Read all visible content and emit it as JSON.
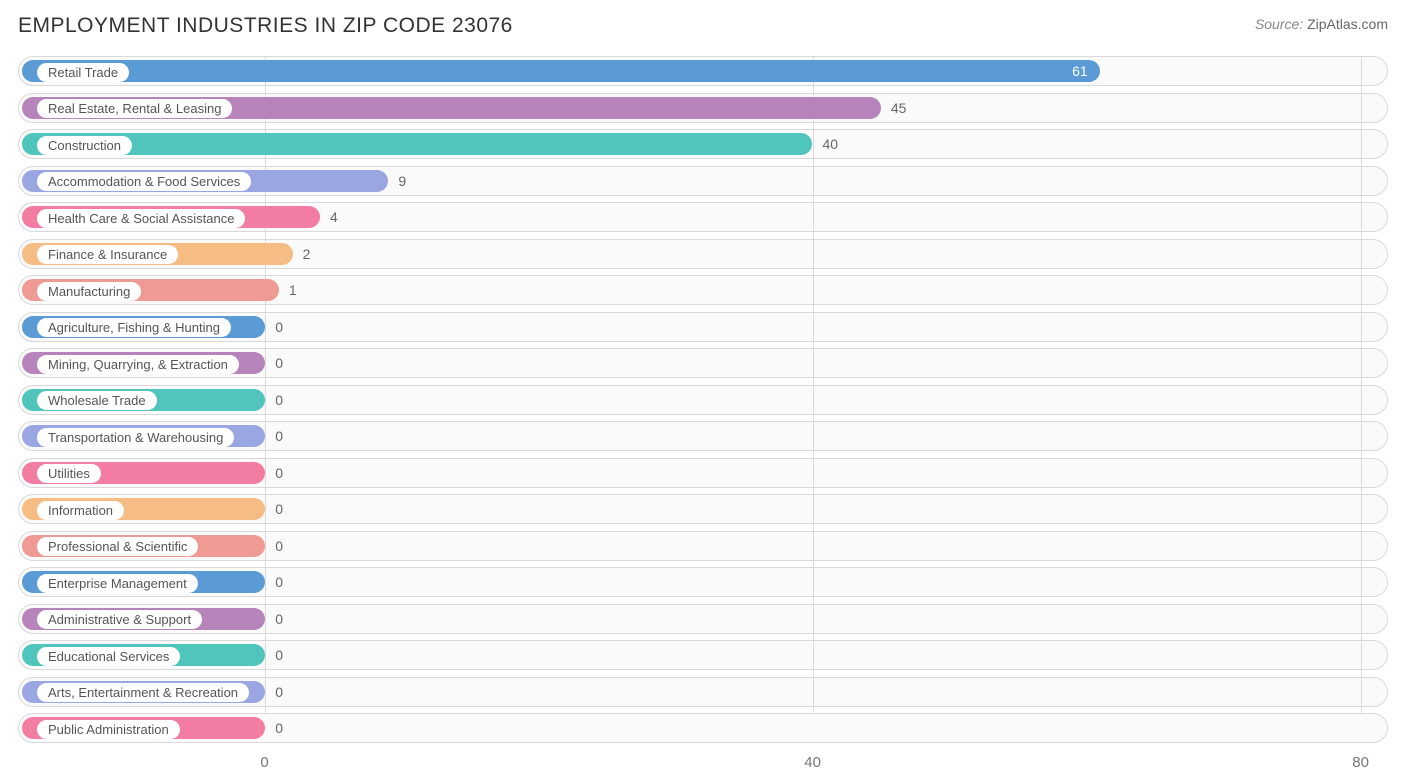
{
  "header": {
    "title": "EMPLOYMENT INDUSTRIES IN ZIP CODE 23076",
    "source_label": "Source:",
    "source_value": "ZipAtlas.com"
  },
  "chart": {
    "type": "bar-horizontal",
    "xlim": [
      -18,
      82
    ],
    "xticks": [
      0,
      40,
      80
    ],
    "grid_color": "#d9d9d9",
    "row_bg": "#fafafa",
    "row_border": "#d9d9d9",
    "pill_bg": "#ffffff",
    "pill_text": "#555555",
    "value_inside_text": "#ffffff",
    "value_outside_text": "#666666",
    "title_color": "#333333",
    "title_fontsize": 21,
    "label_fontsize": 13,
    "value_fontsize": 14,
    "axis_fontsize": 15,
    "min_bar_value_for_inside_label": 50,
    "palette": [
      "#5a9bd5",
      "#b683bb",
      "#4fc5bb",
      "#9aa6e1",
      "#f37ca3",
      "#f5bd84",
      "#f09a94"
    ],
    "bars": [
      {
        "label": "Retail Trade",
        "value": 61
      },
      {
        "label": "Real Estate, Rental & Leasing",
        "value": 45
      },
      {
        "label": "Construction",
        "value": 40
      },
      {
        "label": "Accommodation & Food Services",
        "value": 9
      },
      {
        "label": "Health Care & Social Assistance",
        "value": 4
      },
      {
        "label": "Finance & Insurance",
        "value": 2
      },
      {
        "label": "Manufacturing",
        "value": 1
      },
      {
        "label": "Agriculture, Fishing & Hunting",
        "value": 0
      },
      {
        "label": "Mining, Quarrying, & Extraction",
        "value": 0
      },
      {
        "label": "Wholesale Trade",
        "value": 0
      },
      {
        "label": "Transportation & Warehousing",
        "value": 0
      },
      {
        "label": "Utilities",
        "value": 0
      },
      {
        "label": "Information",
        "value": 0
      },
      {
        "label": "Professional & Scientific",
        "value": 0
      },
      {
        "label": "Enterprise Management",
        "value": 0
      },
      {
        "label": "Administrative & Support",
        "value": 0
      },
      {
        "label": "Educational Services",
        "value": 0
      },
      {
        "label": "Arts, Entertainment & Recreation",
        "value": 0
      },
      {
        "label": "Public Administration",
        "value": 0
      }
    ]
  }
}
